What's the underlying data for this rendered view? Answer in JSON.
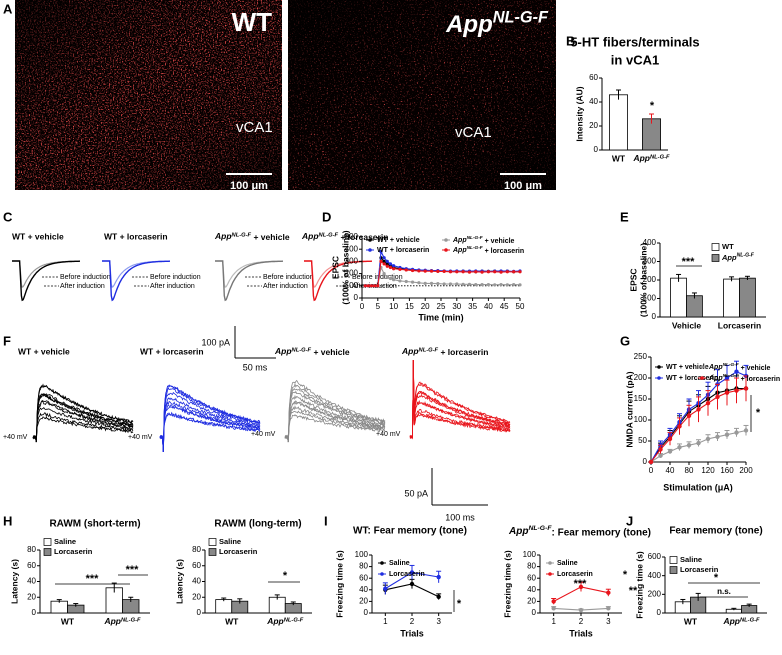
{
  "figure": {
    "panel_labels": [
      "A",
      "B",
      "C",
      "D",
      "E",
      "F",
      "G",
      "H",
      "I",
      "J"
    ],
    "panel_a": {
      "genotypes": [
        "WT",
        "AppNL-G-F"
      ],
      "regions": [
        "vCA1",
        "vCA1"
      ],
      "scale_bars": [
        "100 μm",
        "100 μm"
      ]
    },
    "panel_c": {
      "conditions": [
        "WT + vehicle",
        "WT + lorcaserin",
        "AppNL-G-F + vehicle",
        "AppNL-G-F + lorcaserin"
      ],
      "legend": [
        "Before induction",
        "After induction"
      ],
      "scale_current": "100 pA",
      "scale_time": "50 ms"
    },
    "panel_f": {
      "conditions": [
        "WT + vehicle",
        "WT + lorcaserin",
        "AppNL-G-F + vehicle",
        "AppNL-G-F + lorcaserin"
      ],
      "holding": "+40 mV",
      "scale_current": "50 pA",
      "scale_time": "100 ms"
    }
  },
  "chart_data": [
    {
      "type": "bar",
      "title": [
        "5-HT fibers/terminals",
        "in vCA1"
      ],
      "ylabel": "Intensity (AU)",
      "categories": [
        "WT",
        "AppNL-G-F"
      ],
      "values": [
        46,
        26
      ],
      "errors": [
        4,
        4
      ],
      "colors": [
        "#ffffff",
        "#888888"
      ],
      "ylim": [
        0,
        60
      ],
      "yticks": [
        0,
        20,
        40,
        60
      ],
      "annotations": [
        "*"
      ]
    },
    {
      "type": "line",
      "ylabel": [
        "EPSC",
        "(100% of baseline)"
      ],
      "xlabel": "Time (min)",
      "x": [
        1,
        2,
        3,
        4,
        5,
        6,
        7,
        8,
        9,
        10,
        12,
        14,
        16,
        18,
        20,
        22,
        24,
        26,
        28,
        30,
        32,
        34,
        36,
        38,
        40,
        42,
        44,
        46,
        48,
        50
      ],
      "series": [
        {
          "name": "WT + vehicle",
          "color": "#000000",
          "values": [
            100,
            100,
            100,
            100,
            100,
            330,
            300,
            280,
            260,
            250,
            240,
            235,
            230,
            228,
            225,
            222,
            220,
            220,
            218,
            218,
            220,
            218,
            215,
            220,
            218,
            220,
            218,
            220,
            215,
            218
          ]
        },
        {
          "name": "WT + lorcaserin",
          "color": "#1f2de0",
          "values": [
            100,
            100,
            100,
            100,
            100,
            380,
            330,
            300,
            280,
            265,
            250,
            240,
            235,
            230,
            228,
            225,
            225,
            222,
            220,
            222,
            220,
            220,
            222,
            220,
            218,
            220,
            222,
            220,
            218,
            222
          ]
        },
        {
          "name": "AppNL-G-F + vehicle",
          "color": "#999999",
          "values": [
            100,
            100,
            100,
            100,
            100,
            250,
            200,
            170,
            160,
            150,
            140,
            135,
            130,
            125,
            120,
            120,
            118,
            115,
            115,
            115,
            112,
            112,
            110,
            110,
            110,
            108,
            110,
            108,
            110,
            108
          ]
        },
        {
          "name": "AppNL-G-F + lorcaserin",
          "color": "#e8141b",
          "values": [
            100,
            100,
            100,
            100,
            100,
            300,
            280,
            260,
            250,
            240,
            235,
            230,
            225,
            222,
            220,
            220,
            218,
            218,
            215,
            215,
            215,
            212,
            215,
            212,
            215,
            215,
            212,
            215,
            215,
            215
          ]
        }
      ],
      "xlim": [
        0,
        50
      ],
      "xticks": [
        0,
        5,
        10,
        15,
        20,
        25,
        30,
        35,
        40,
        45,
        50
      ],
      "ylim": [
        0,
        500
      ],
      "yticks": [
        0,
        100,
        200,
        300,
        400,
        500
      ],
      "hline": 100
    },
    {
      "type": "bar",
      "ylabel": [
        "EPSC",
        "(100% of baseline)"
      ],
      "categories": [
        "Vehicle",
        "Lorcaserin"
      ],
      "series": [
        {
          "name": "WT",
          "color": "#ffffff",
          "values": [
            210,
            205
          ],
          "errors": [
            20,
            12
          ]
        },
        {
          "name": "AppNL-G-F",
          "color": "#888888",
          "values": [
            115,
            210
          ],
          "errors": [
            15,
            10
          ]
        }
      ],
      "ylim": [
        0,
        400
      ],
      "yticks": [
        0,
        100,
        200,
        300,
        400
      ],
      "annotations": [
        "***"
      ]
    },
    {
      "type": "line",
      "ylabel": "NMDA current (pA)",
      "xlabel": "Stimulation (μA)",
      "x": [
        0,
        20,
        40,
        60,
        80,
        100,
        120,
        140,
        160,
        180,
        200
      ],
      "series": [
        {
          "name": "WT + vehicle",
          "color": "#000000",
          "values": [
            0,
            35,
            60,
            90,
            120,
            135,
            150,
            165,
            170,
            175,
            175
          ],
          "errors": [
            0,
            10,
            15,
            20,
            25,
            25,
            30,
            30,
            35,
            30,
            30
          ]
        },
        {
          "name": "WT + lorcaserin",
          "color": "#1f2de0",
          "values": [
            0,
            40,
            65,
            95,
            125,
            140,
            160,
            185,
            200,
            215,
            205
          ],
          "errors": [
            0,
            10,
            15,
            20,
            25,
            30,
            30,
            35,
            30,
            25,
            25
          ]
        },
        {
          "name": "AppNL-G-F + vehicle",
          "color": "#999999",
          "values": [
            0,
            15,
            25,
            35,
            40,
            45,
            55,
            60,
            65,
            70,
            75
          ],
          "errors": [
            0,
            5,
            5,
            8,
            8,
            8,
            10,
            10,
            10,
            10,
            12
          ]
        },
        {
          "name": "AppNL-G-F + lorcaserin",
          "color": "#e8141b",
          "values": [
            0,
            30,
            55,
            85,
            110,
            125,
            140,
            155,
            165,
            170,
            175
          ],
          "errors": [
            0,
            10,
            15,
            20,
            25,
            30,
            30,
            30,
            30,
            30,
            30
          ]
        }
      ],
      "xlim": [
        0,
        200
      ],
      "xticks": [
        0,
        40,
        80,
        120,
        160,
        200
      ],
      "ylim": [
        0,
        250
      ],
      "yticks": [
        0,
        50,
        100,
        150,
        200,
        250
      ],
      "annotations": [
        "*"
      ]
    },
    {
      "type": "bar",
      "title": "RAWM (short-term)",
      "ylabel": "Latency (s)",
      "categories": [
        "WT",
        "AppNL-G-F"
      ],
      "series": [
        {
          "name": "Saline",
          "color": "#ffffff",
          "values": [
            15,
            32
          ],
          "errors": [
            2,
            6
          ]
        },
        {
          "name": "Lorcaserin",
          "color": "#888888",
          "values": [
            10,
            17
          ],
          "errors": [
            2,
            3
          ]
        }
      ],
      "ylim": [
        0,
        80
      ],
      "yticks": [
        0,
        20,
        40,
        60,
        80
      ],
      "annotations": [
        "***",
        "***"
      ]
    },
    {
      "type": "bar",
      "title": "RAWM (long-term)",
      "ylabel": "Latency (s)",
      "categories": [
        "WT",
        "AppNL-G-F"
      ],
      "series": [
        {
          "name": "Saline",
          "color": "#ffffff",
          "values": [
            17,
            20
          ],
          "errors": [
            2,
            3
          ]
        },
        {
          "name": "Lorcaserin",
          "color": "#888888",
          "values": [
            15,
            12
          ],
          "errors": [
            3,
            2
          ]
        }
      ],
      "ylim": [
        0,
        80
      ],
      "yticks": [
        0,
        20,
        40,
        60,
        80
      ],
      "annotations": [
        "*"
      ]
    },
    {
      "type": "line",
      "title": "WT: Fear memory (tone)",
      "ylabel": "Freezing time (s)",
      "xlabel": "Trials",
      "x": [
        1,
        2,
        3
      ],
      "series": [
        {
          "name": "Saline",
          "color": "#000000",
          "values": [
            40,
            50,
            28
          ],
          "errors": [
            8,
            8,
            5
          ]
        },
        {
          "name": "Lorcaserin",
          "color": "#1f2de0",
          "values": [
            42,
            70,
            62
          ],
          "errors": [
            10,
            12,
            10
          ]
        }
      ],
      "xlim": [
        0.5,
        3.5
      ],
      "xticks": [
        1,
        2,
        3
      ],
      "ylim": [
        0,
        100
      ],
      "yticks": [
        0,
        20,
        40,
        60,
        80,
        100
      ],
      "annotations": [
        "*"
      ]
    },
    {
      "type": "line",
      "title": "AppNL-G-F: Fear memory (tone)",
      "ylabel": "Freezing time (s)",
      "xlabel": "Trials",
      "x": [
        1,
        2,
        3
      ],
      "series": [
        {
          "name": "Saline",
          "color": "#999999",
          "values": [
            8,
            5,
            8
          ],
          "errors": [
            3,
            2,
            3
          ]
        },
        {
          "name": "Lorcaserin",
          "color": "#e8141b",
          "values": [
            20,
            45,
            35
          ],
          "errors": [
            5,
            8,
            6
          ]
        }
      ],
      "xlim": [
        0.5,
        3.5
      ],
      "xticks": [
        1,
        2,
        3
      ],
      "ylim": [
        0,
        100
      ],
      "yticks": [
        0,
        20,
        40,
        60,
        80,
        100
      ],
      "annotations": [
        "***",
        "*",
        "**"
      ]
    },
    {
      "type": "bar",
      "title": "Fear memory (tone)",
      "ylabel": "Freezing time (s)",
      "categories": [
        "WT",
        "AppNL-G-F"
      ],
      "series": [
        {
          "name": "Saline",
          "color": "#ffffff",
          "values": [
            120,
            40
          ],
          "errors": [
            25,
            10
          ]
        },
        {
          "name": "Lorcaserin",
          "color": "#888888",
          "values": [
            170,
            80
          ],
          "errors": [
            40,
            15
          ]
        }
      ],
      "ylim": [
        0,
        600
      ],
      "yticks": [
        0,
        200,
        400,
        600
      ],
      "annotations": [
        "*",
        "n.s."
      ]
    }
  ]
}
